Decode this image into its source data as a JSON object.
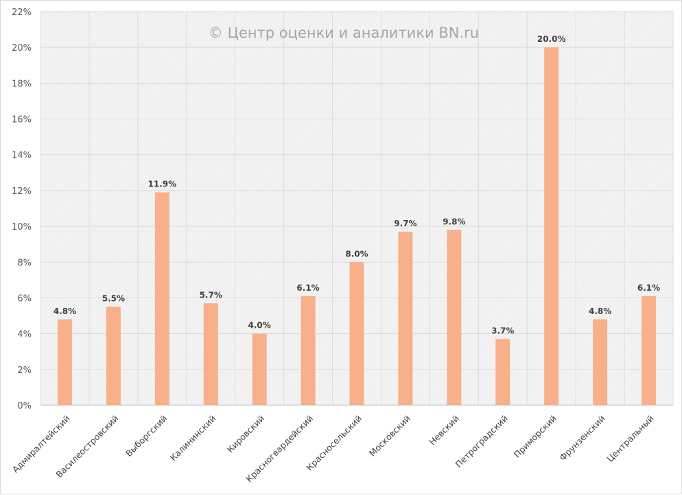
{
  "chart_data": {
    "type": "bar",
    "title": "",
    "watermark": "© Центр оценки и аналитики BN.ru",
    "categories": [
      "Адмиралтейский",
      "Василеостровский",
      "Выборгский",
      "Калининский",
      "Кировский",
      "Красногвардейский",
      "Красносельский",
      "Московский",
      "Невский",
      "Петроградский",
      "Приморский",
      "Фрунзенский",
      "Центральный"
    ],
    "values": [
      4.8,
      5.5,
      11.9,
      5.7,
      4.0,
      6.1,
      8.0,
      9.7,
      9.8,
      3.7,
      20.0,
      4.8,
      6.1
    ],
    "data_labels": [
      "4.8%",
      "5.5%",
      "11.9%",
      "5.7%",
      "4.0%",
      "6.1%",
      "8.0%",
      "9.7%",
      "9.8%",
      "3.7%",
      "20.0%",
      "4.8%",
      "6.1%"
    ],
    "ylim": [
      0,
      22
    ],
    "yticks": [
      0,
      2,
      4,
      6,
      8,
      10,
      12,
      14,
      16,
      18,
      20,
      22
    ],
    "ytick_labels": [
      "0%",
      "2%",
      "4%",
      "6%",
      "8%",
      "10%",
      "12%",
      "14%",
      "16%",
      "18%",
      "20%",
      "22%"
    ],
    "xlabel": "",
    "ylabel": "",
    "grid": true,
    "bar_color": "#f7b08a"
  }
}
